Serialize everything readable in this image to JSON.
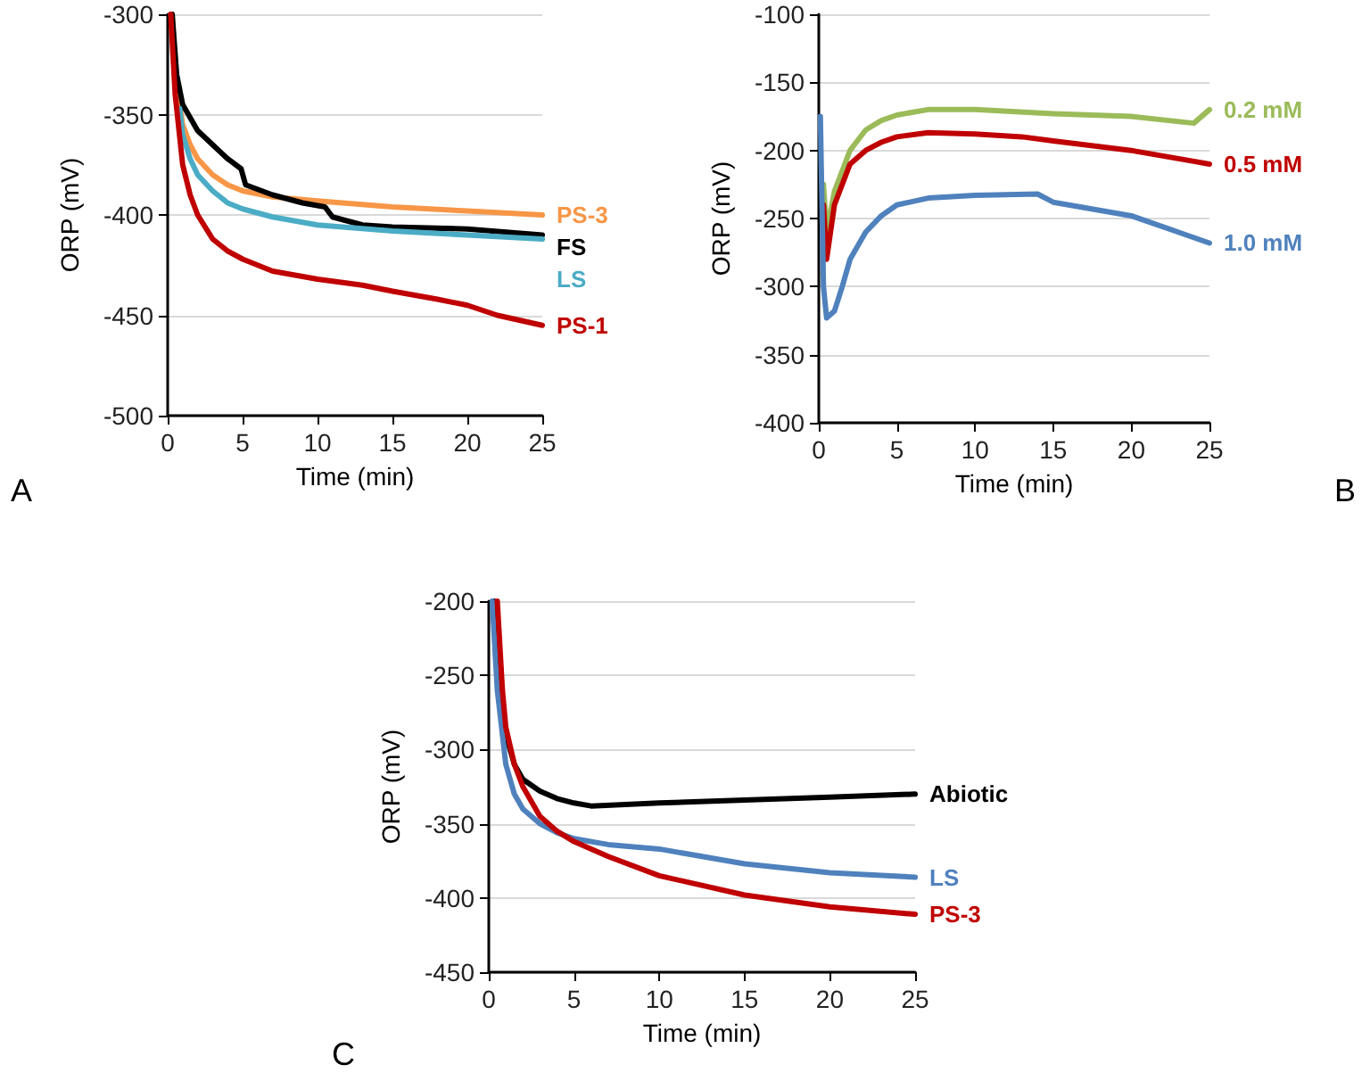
{
  "chart_data": [
    {
      "type": "line",
      "xlabel": "Time (min)",
      "ylabel": "ORP (mV)",
      "annotations": [
        "A"
      ],
      "xlim": [
        0,
        25
      ],
      "xticks": [
        0,
        5,
        10,
        15,
        20,
        25
      ],
      "ylim": [
        -500,
        -300
      ],
      "yticks": [
        -500,
        -450,
        -400,
        -350,
        -300
      ],
      "grid": "y",
      "legend": false,
      "marker": "none",
      "line_style": "solid",
      "series": [
        {
          "name": "PS-3",
          "color": "#f79646",
          "x": [
            0.3,
            0.5,
            1,
            1.5,
            2,
            3,
            4,
            5,
            7,
            10,
            15,
            20,
            25
          ],
          "values": [
            -300,
            -330,
            -355,
            -365,
            -372,
            -380,
            -385,
            -388,
            -391,
            -393,
            -396,
            -398,
            -400
          ]
        },
        {
          "name": "FS",
          "color": "#000000",
          "x": [
            0.3,
            0.6,
            1,
            2,
            3,
            4,
            4.9,
            5.2,
            7,
            9,
            10.5,
            11,
            13,
            15,
            20,
            25
          ],
          "values": [
            -300,
            -330,
            -345,
            -358,
            -365,
            -372,
            -377,
            -385,
            -390,
            -394,
            -396,
            -401,
            -405,
            -406,
            -407,
            -410
          ]
        },
        {
          "name": "LS",
          "color": "#4bacc6",
          "x": [
            0.8,
            1,
            1.5,
            2,
            3,
            4,
            5,
            7,
            10,
            15,
            20,
            25
          ],
          "values": [
            -347,
            -360,
            -372,
            -380,
            -388,
            -394,
            -397,
            -401,
            -405,
            -408,
            -410,
            -412
          ]
        },
        {
          "name": "PS-1",
          "color": "#c00000",
          "x": [
            0.2,
            0.5,
            1,
            1.5,
            2,
            3,
            4,
            5,
            7,
            10,
            13,
            15,
            18,
            20,
            22,
            25
          ],
          "values": [
            -300,
            -340,
            -375,
            -390,
            -400,
            -412,
            -418,
            -422,
            -428,
            -432,
            -435,
            -438,
            -442,
            -445,
            -450,
            -455
          ]
        }
      ]
    },
    {
      "type": "line",
      "xlabel": "Time (min)",
      "ylabel": "ORP (mV)",
      "annotations": [
        "B"
      ],
      "xlim": [
        0,
        25
      ],
      "xticks": [
        0,
        5,
        10,
        15,
        20,
        25
      ],
      "ylim": [
        -400,
        -100
      ],
      "yticks": [
        -400,
        -350,
        -300,
        -250,
        -200,
        -150,
        -100
      ],
      "grid": "y",
      "legend": false,
      "marker": "none",
      "line_style": "solid",
      "series": [
        {
          "name": "0.2 mM",
          "color": "#9bbb59",
          "x": [
            0.3,
            0.5,
            1,
            2,
            3,
            4,
            5,
            7,
            10,
            15,
            20,
            24,
            25
          ],
          "values": [
            -225,
            -260,
            -230,
            -200,
            -185,
            -178,
            -174,
            -170,
            -170,
            -173,
            -175,
            -180,
            -170
          ]
        },
        {
          "name": "0.5 mM",
          "color": "#c00000",
          "x": [
            0.3,
            0.5,
            1,
            2,
            3,
            4,
            5,
            7,
            10,
            13,
            15,
            20,
            24,
            25
          ],
          "values": [
            -240,
            -280,
            -240,
            -210,
            -200,
            -194,
            -190,
            -187,
            -188,
            -190,
            -193,
            -200,
            -208,
            -210
          ]
        },
        {
          "name": "1.0 mM",
          "color": "#4f81bd",
          "x": [
            0.1,
            0.3,
            0.5,
            1,
            1.5,
            2,
            3,
            4,
            5,
            7,
            10,
            14,
            15,
            20,
            23,
            25
          ],
          "values": [
            -175,
            -300,
            -323,
            -318,
            -300,
            -280,
            -260,
            -248,
            -240,
            -235,
            -233,
            -232,
            -238,
            -248,
            -260,
            -268
          ]
        }
      ]
    },
    {
      "type": "line",
      "xlabel": "Time (min)",
      "ylabel": "ORP (mV)",
      "annotations": [
        "C"
      ],
      "xlim": [
        0,
        25
      ],
      "xticks": [
        0,
        5,
        10,
        15,
        20,
        25
      ],
      "ylim": [
        -450,
        -200
      ],
      "yticks": [
        -450,
        -400,
        -350,
        -300,
        -250,
        -200
      ],
      "grid": "y",
      "legend": false,
      "marker": "none",
      "line_style": "solid",
      "series": [
        {
          "name": "Abiotic",
          "color": "#000000",
          "x": [
            0.3,
            0.6,
            1,
            1.5,
            2,
            3,
            4,
            5,
            6,
            10,
            15,
            20,
            25
          ],
          "values": [
            -200,
            -260,
            -290,
            -310,
            -320,
            -328,
            -333,
            -336,
            -338,
            -336,
            -334,
            -332,
            -330
          ]
        },
        {
          "name": "LS",
          "color": "#4f81bd",
          "x": [
            0.2,
            0.5,
            1,
            1.5,
            2,
            3,
            4,
            5,
            7,
            10,
            15,
            20,
            25
          ],
          "values": [
            -200,
            -260,
            -310,
            -330,
            -340,
            -350,
            -356,
            -360,
            -364,
            -367,
            -377,
            -383,
            -386
          ]
        },
        {
          "name": "PS-3",
          "color": "#c00000",
          "x": [
            0.5,
            0.8,
            1,
            1.5,
            2,
            3,
            4,
            5,
            7,
            10,
            15,
            20,
            25
          ],
          "values": [
            -200,
            -260,
            -285,
            -310,
            -325,
            -345,
            -355,
            -362,
            -372,
            -385,
            -398,
            -406,
            -411
          ]
        }
      ]
    }
  ]
}
